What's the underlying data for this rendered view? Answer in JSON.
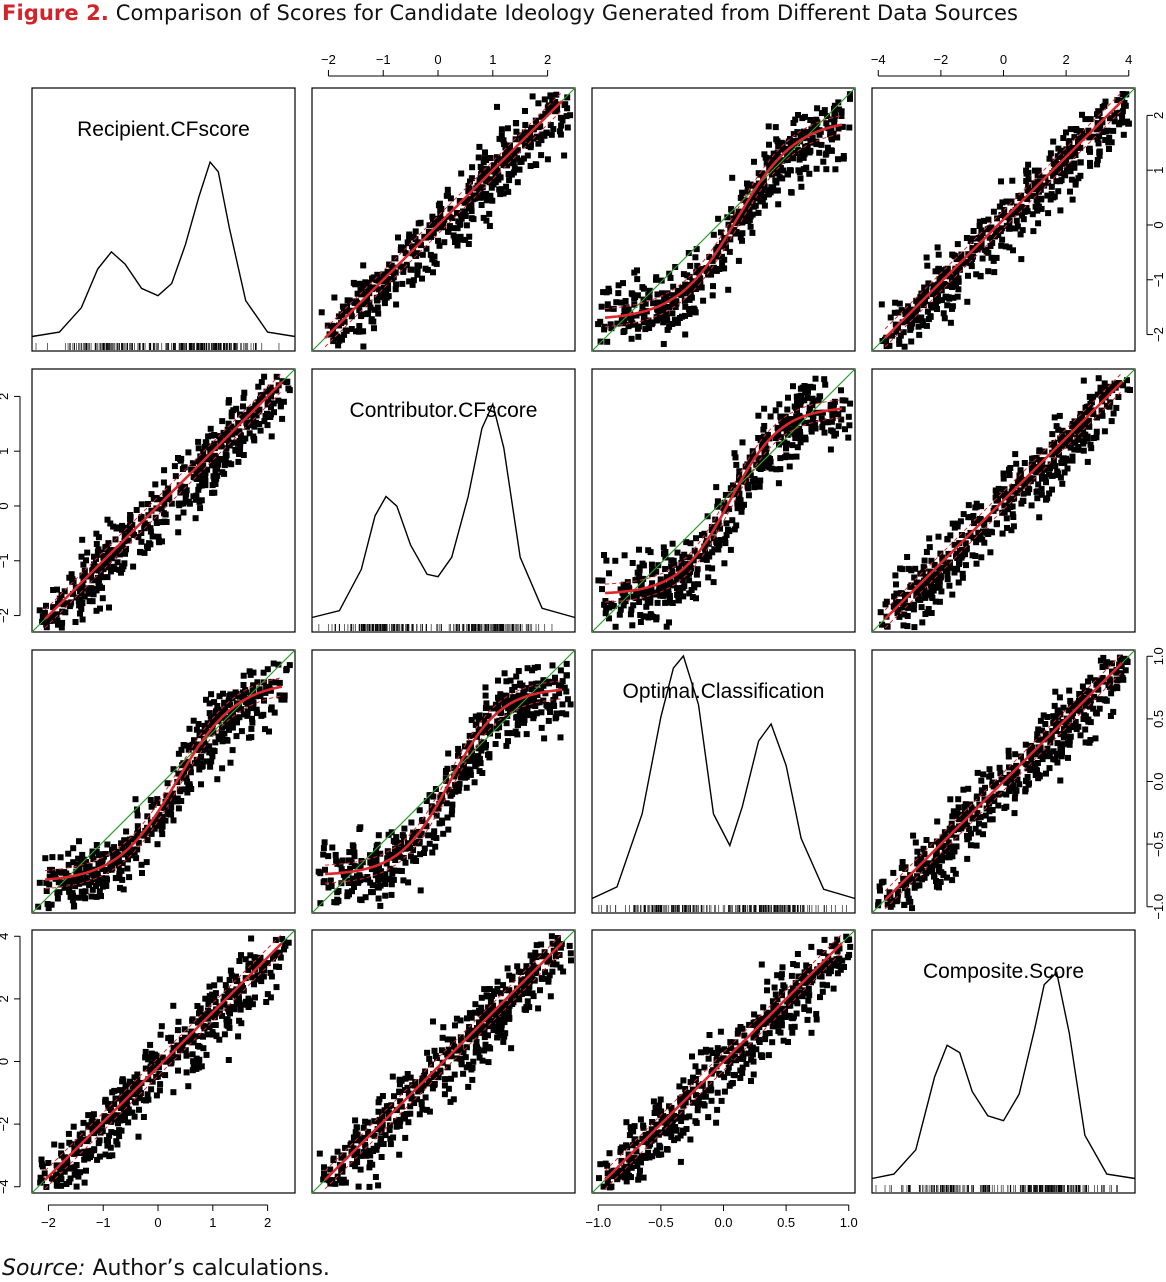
{
  "figure": {
    "number": "Figure 2.",
    "title": "Comparison of Scores for Candidate Ideology Generated from Different Data Sources"
  },
  "source": {
    "label": "Source:",
    "text": "Author’s calculations."
  },
  "colors": {
    "points": "#000000",
    "smoother": "#e0262b",
    "identity_line": "#2ca02c",
    "frame": "#000000"
  },
  "chart_data": {
    "type": "scatter",
    "subtype": "scatterplot-matrix",
    "grid": false,
    "variables": [
      {
        "name": "Recipient.CFscore",
        "range": [
          -2.3,
          2.5
        ],
        "ticks": [
          -2,
          -1,
          0,
          1,
          2
        ],
        "tick_labels": [
          "−2",
          "−1",
          "0",
          "1",
          "2"
        ],
        "density": {
          "x": [
            -2.3,
            -1.8,
            -1.4,
            -1.1,
            -0.85,
            -0.6,
            -0.3,
            0.0,
            0.25,
            0.5,
            0.75,
            0.95,
            1.1,
            1.3,
            1.6,
            2.0,
            2.5
          ],
          "y": [
            0.002,
            0.02,
            0.12,
            0.28,
            0.35,
            0.3,
            0.2,
            0.17,
            0.22,
            0.38,
            0.58,
            0.72,
            0.68,
            0.45,
            0.15,
            0.02,
            0.002
          ]
        }
      },
      {
        "name": "Contributor.CFscore",
        "range": [
          -2.3,
          2.5
        ],
        "ticks": [
          -2,
          -1,
          0,
          1,
          2
        ],
        "tick_labels": [
          "−2",
          "−1",
          "0",
          "1",
          "2"
        ],
        "density": {
          "x": [
            -2.3,
            -1.8,
            -1.4,
            -1.15,
            -0.95,
            -0.75,
            -0.5,
            -0.2,
            0.0,
            0.25,
            0.55,
            0.8,
            1.0,
            1.2,
            1.5,
            1.9,
            2.5
          ],
          "y": [
            0.002,
            0.03,
            0.2,
            0.42,
            0.5,
            0.46,
            0.3,
            0.18,
            0.17,
            0.25,
            0.5,
            0.78,
            0.88,
            0.7,
            0.25,
            0.04,
            0.002
          ]
        }
      },
      {
        "name": "Optimal.Classification",
        "range": [
          -1.05,
          1.05
        ],
        "ticks": [
          -1.0,
          -0.5,
          0.0,
          0.5,
          1.0
        ],
        "tick_labels": [
          "−1.0",
          "−0.5",
          "0.0",
          "0.5",
          "1.0"
        ],
        "density": {
          "x": [
            -1.05,
            -0.85,
            -0.65,
            -0.5,
            -0.4,
            -0.32,
            -0.2,
            -0.08,
            0.05,
            0.15,
            0.28,
            0.38,
            0.5,
            0.62,
            0.8,
            1.05
          ],
          "y": [
            0.002,
            0.05,
            0.35,
            0.75,
            0.95,
            1.0,
            0.8,
            0.35,
            0.22,
            0.38,
            0.65,
            0.72,
            0.55,
            0.25,
            0.04,
            0.002
          ]
        }
      },
      {
        "name": "Composite.Score",
        "range": [
          -4.2,
          4.2
        ],
        "ticks": [
          -4,
          -2,
          0,
          2,
          4
        ],
        "tick_labels": [
          "−4",
          "−2",
          "0",
          "2",
          "4"
        ],
        "density": {
          "x": [
            -4.2,
            -3.5,
            -2.8,
            -2.2,
            -1.8,
            -1.4,
            -1.0,
            -0.5,
            0.0,
            0.5,
            1.0,
            1.3,
            1.7,
            2.1,
            2.6,
            3.3,
            4.2
          ],
          "y": [
            0.002,
            0.02,
            0.12,
            0.42,
            0.55,
            0.52,
            0.36,
            0.26,
            0.24,
            0.35,
            0.62,
            0.8,
            0.85,
            0.6,
            0.18,
            0.02,
            0.002
          ]
        }
      }
    ],
    "pair_curves": {
      "0-1": {
        "type": "linear",
        "a": 0.0,
        "b": 1.0
      },
      "0-2": {
        "type": "sigmoid",
        "scale": 0.45,
        "steep": 2.2,
        "offset": 0.1
      },
      "0-3": {
        "type": "linear",
        "a": 0.0,
        "b": 1.6
      },
      "1-2": {
        "type": "sigmoid",
        "scale": 0.42,
        "steep": 2.6,
        "offset": 0.05
      },
      "1-3": {
        "type": "linear",
        "a": 0.0,
        "b": 1.55
      },
      "2-3": {
        "type": "linear",
        "a": 0.0,
        "b": 3.2
      }
    },
    "axes": {
      "top": [
        1,
        3
      ],
      "right": [
        0,
        2
      ],
      "bottom": [
        0,
        2
      ],
      "left": [
        1,
        3
      ]
    }
  }
}
